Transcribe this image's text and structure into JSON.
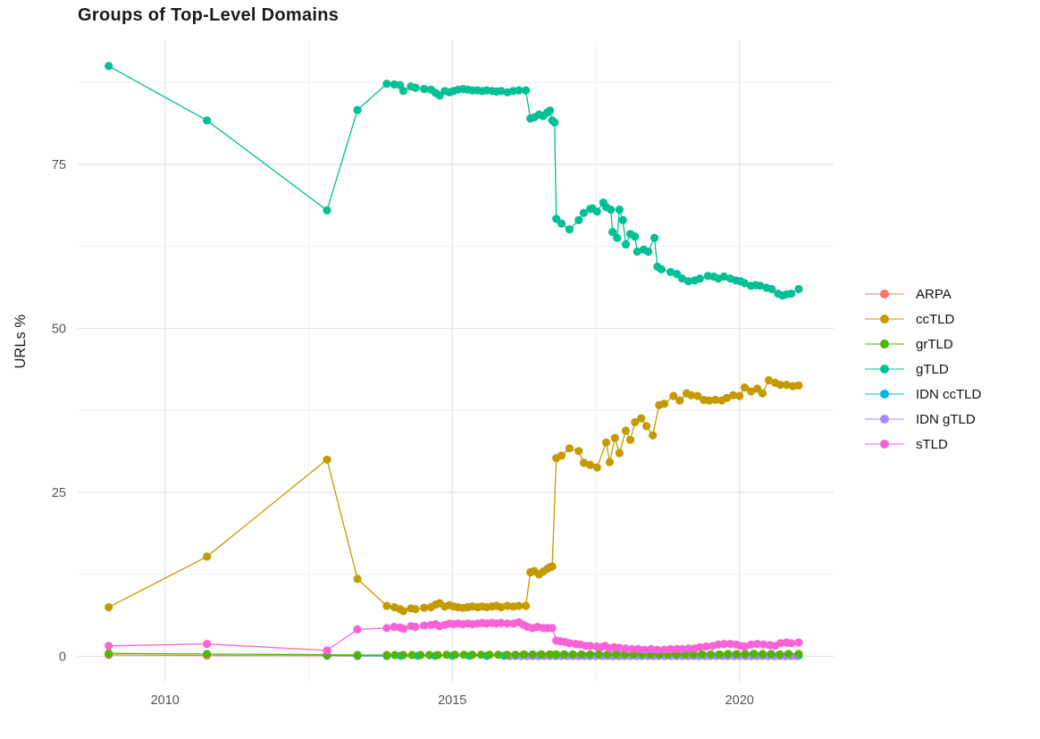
{
  "title": "Groups of Top-Level Domains",
  "axes": {
    "y_label": "URLs %",
    "y_tick_labels": [
      "0",
      "25",
      "50",
      "75"
    ],
    "x_tick_labels": [
      "2010",
      "2015",
      "2020"
    ]
  },
  "legend": {
    "items": [
      {
        "label": "ARPA",
        "color": "#F8766D"
      },
      {
        "label": "ccTLD",
        "color": "#C49A00"
      },
      {
        "label": "grTLD",
        "color": "#53B400"
      },
      {
        "label": "gTLD",
        "color": "#00C094"
      },
      {
        "label": "IDN ccTLD",
        "color": "#00B6EB"
      },
      {
        "label": "IDN gTLD",
        "color": "#A58AFF"
      },
      {
        "label": "sTLD",
        "color": "#FB61D7"
      }
    ]
  },
  "chart_data": {
    "type": "line",
    "title": "Groups of Top-Level Domains",
    "xlabel": "",
    "ylabel": "URLs %",
    "xlim": [
      2008.5,
      2021.65
    ],
    "ylim": [
      -1.5,
      94
    ],
    "x_ticks": [
      2010,
      2015,
      2020
    ],
    "x_minor": [
      2012.5,
      2017.5
    ],
    "y_ticks": [
      0,
      25,
      50,
      75
    ],
    "y_minor": [
      12.5,
      37.5,
      62.5,
      87.5
    ],
    "grid": true,
    "legend_position": "right",
    "grid_major_color": "#E4E4E4",
    "grid_minor_color": "#EFEFEF",
    "series": [
      {
        "name": "ARPA",
        "color": "#F8766D",
        "x": [
          2009.02,
          2010.73,
          2012.82,
          2013.35,
          2013.86
        ],
        "y": [
          0.2,
          0.12,
          0.08,
          0.06,
          0.05
        ]
      },
      {
        "name": "ccTLD",
        "color": "#C49A00",
        "x": [
          2009.02,
          2010.73,
          2012.82,
          2013.35,
          2013.86,
          2013.99,
          2014.09,
          2014.15,
          2014.28,
          2014.36,
          2014.51,
          2014.63,
          2014.71,
          2014.78,
          2014.87,
          2014.95,
          2015.02,
          2015.1,
          2015.19,
          2015.27,
          2015.35,
          2015.44,
          2015.52,
          2015.6,
          2015.69,
          2015.77,
          2015.85,
          2015.96,
          2016.06,
          2016.16,
          2016.28,
          2016.36,
          2016.43,
          2016.51,
          2016.58,
          2016.65,
          2016.7,
          2016.74,
          2016.81,
          2016.9,
          2017.04,
          2017.2,
          2017.29,
          2017.4,
          2017.52,
          2017.68,
          2017.74,
          2017.83,
          2017.91,
          2018.02,
          2018.1,
          2018.18,
          2018.29,
          2018.38,
          2018.49,
          2018.6,
          2018.69,
          2018.85,
          2018.96,
          2019.08,
          2019.16,
          2019.27,
          2019.38,
          2019.47,
          2019.58,
          2019.69,
          2019.78,
          2019.89,
          2020.0,
          2020.09,
          2020.2,
          2020.31,
          2020.4,
          2020.51,
          2020.62,
          2020.71,
          2020.82,
          2020.93,
          2021.03
        ],
        "y": [
          7.5,
          15.2,
          30,
          11.8,
          7.7,
          7.5,
          7.2,
          6.9,
          7.3,
          7.2,
          7.4,
          7.5,
          7.9,
          8.1,
          7.6,
          7.8,
          7.6,
          7.5,
          7.4,
          7.5,
          7.6,
          7.5,
          7.6,
          7.5,
          7.6,
          7.7,
          7.5,
          7.7,
          7.6,
          7.7,
          7.7,
          12.8,
          13,
          12.5,
          12.9,
          13.3,
          13.6,
          13.7,
          30.2,
          30.6,
          31.7,
          31.3,
          29.5,
          29.2,
          28.8,
          32.6,
          29.6,
          33.3,
          31,
          34.4,
          33,
          35.7,
          36.3,
          35.1,
          33.7,
          38.3,
          38.5,
          39.7,
          39,
          40.1,
          39.8,
          39.7,
          39.1,
          39,
          39.1,
          39,
          39.4,
          39.8,
          39.7,
          41,
          40.4,
          40.8,
          40.1,
          42.1,
          41.7,
          41.4,
          41.4,
          41.2,
          41.3
        ]
      },
      {
        "name": "grTLD",
        "color": "#53B400",
        "x": [
          2009.02,
          2010.73,
          2012.82,
          2013.35,
          2013.86,
          2014.0,
          2014.15,
          2014.3,
          2014.45,
          2014.6,
          2014.75,
          2014.9,
          2015.05,
          2015.2,
          2015.35,
          2015.5,
          2015.65,
          2015.8,
          2015.95,
          2016.1,
          2016.25,
          2016.4,
          2016.55,
          2016.7,
          2016.81,
          2016.95,
          2017.1,
          2017.25,
          2017.4,
          2017.55,
          2017.7,
          2017.85,
          2018.0,
          2018.15,
          2018.3,
          2018.45,
          2018.6,
          2018.75,
          2018.9,
          2019.05,
          2019.2,
          2019.35,
          2019.5,
          2019.65,
          2019.8,
          2019.95,
          2020.1,
          2020.25,
          2020.4,
          2020.55,
          2020.7,
          2020.85,
          2021.03
        ],
        "y": [
          0.45,
          0.35,
          0.25,
          0.2,
          0.2,
          0.2,
          0.2,
          0.2,
          0.2,
          0.2,
          0.2,
          0.25,
          0.25,
          0.25,
          0.25,
          0.25,
          0.25,
          0.25,
          0.25,
          0.25,
          0.3,
          0.3,
          0.3,
          0.3,
          0.3,
          0.3,
          0.3,
          0.3,
          0.3,
          0.3,
          0.3,
          0.3,
          0.3,
          0.3,
          0.3,
          0.3,
          0.3,
          0.3,
          0.3,
          0.3,
          0.3,
          0.3,
          0.3,
          0.3,
          0.35,
          0.35,
          0.35,
          0.4,
          0.35,
          0.35,
          0.3,
          0.35,
          0.35
        ]
      },
      {
        "name": "gTLD",
        "color": "#00C094",
        "x": [
          2009.02,
          2010.73,
          2012.82,
          2013.35,
          2013.86,
          2013.99,
          2014.09,
          2014.15,
          2014.28,
          2014.36,
          2014.51,
          2014.63,
          2014.71,
          2014.78,
          2014.87,
          2014.95,
          2015.02,
          2015.1,
          2015.19,
          2015.27,
          2015.35,
          2015.44,
          2015.52,
          2015.6,
          2015.69,
          2015.77,
          2015.85,
          2015.96,
          2016.06,
          2016.16,
          2016.28,
          2016.36,
          2016.43,
          2016.51,
          2016.58,
          2016.65,
          2016.7,
          2016.74,
          2016.78,
          2016.81,
          2016.9,
          2017.04,
          2017.2,
          2017.29,
          2017.4,
          2017.44,
          2017.52,
          2017.63,
          2017.68,
          2017.76,
          2017.79,
          2017.87,
          2017.91,
          2017.97,
          2018.02,
          2018.1,
          2018.18,
          2018.22,
          2018.33,
          2018.41,
          2018.52,
          2018.57,
          2018.64,
          2018.8,
          2018.91,
          2019.0,
          2019.11,
          2019.22,
          2019.31,
          2019.45,
          2019.55,
          2019.63,
          2019.73,
          2019.84,
          2019.94,
          2020.02,
          2020.09,
          2020.2,
          2020.28,
          2020.36,
          2020.47,
          2020.56,
          2020.67,
          2020.75,
          2020.82,
          2020.9,
          2021.03
        ],
        "y": [
          90,
          81.7,
          68,
          83.3,
          87.3,
          87.2,
          87.1,
          86.2,
          86.9,
          86.7,
          86.5,
          86.4,
          85.9,
          85.5,
          86.2,
          86,
          86.2,
          86.4,
          86.5,
          86.4,
          86.3,
          86.3,
          86.2,
          86.3,
          86.2,
          86.1,
          86.2,
          86,
          86.2,
          86.3,
          86.3,
          82,
          82.2,
          82.6,
          82.4,
          82.9,
          83.2,
          81.7,
          81.4,
          66.7,
          66,
          65.1,
          66.5,
          67.6,
          68.2,
          68.3,
          67.8,
          69.2,
          68.5,
          68.1,
          64.7,
          63.8,
          68.1,
          66.5,
          62.8,
          64.4,
          64,
          61.7,
          62,
          61.7,
          63.8,
          59.4,
          59,
          58.6,
          58.3,
          57.6,
          57.2,
          57.3,
          57.6,
          58,
          57.9,
          57.6,
          57.9,
          57.6,
          57.3,
          57.2,
          56.9,
          56.5,
          56.6,
          56.5,
          56.2,
          56,
          55.3,
          55,
          55.2,
          55.3,
          56
        ]
      },
      {
        "name": "IDN ccTLD",
        "color": "#00B6EB",
        "x": [
          2012.82,
          2013.35,
          2013.86,
          2014.1,
          2014.4,
          2014.7,
          2015.0,
          2015.3,
          2015.6,
          2015.9,
          2016.2,
          2016.5,
          2016.81,
          2017.1,
          2017.4,
          2017.7,
          2018.0,
          2018.3,
          2018.6,
          2018.9,
          2019.2,
          2019.5,
          2019.8,
          2020.1,
          2020.4,
          2020.7,
          2021.03
        ],
        "y": [
          0.15,
          0.1,
          0.08,
          0.08,
          0.08,
          0.08,
          0.08,
          0.08,
          0.08,
          0.08,
          0.08,
          0.08,
          0.08,
          0.08,
          0.08,
          0.08,
          0.08,
          0.08,
          0.08,
          0.08,
          0.08,
          0.08,
          0.08,
          0.08,
          0.08,
          0.08,
          0.08
        ]
      },
      {
        "name": "IDN gTLD",
        "color": "#A58AFF",
        "x": [
          2016.0,
          2016.1,
          2016.2,
          2016.3,
          2016.4,
          2016.5,
          2016.6,
          2016.7,
          2016.8,
          2016.9,
          2017.0,
          2017.1,
          2017.2,
          2017.3,
          2017.4,
          2017.5,
          2017.6,
          2017.7,
          2017.8,
          2017.9,
          2018.0,
          2018.1,
          2018.2,
          2018.3,
          2018.4,
          2018.5,
          2018.6,
          2018.7,
          2018.8,
          2018.9,
          2019.0,
          2019.1,
          2019.2,
          2019.3,
          2019.4,
          2019.5,
          2019.6,
          2019.7,
          2019.8,
          2019.9,
          2020.0,
          2020.1,
          2020.2,
          2020.3,
          2020.4,
          2020.5,
          2020.6,
          2020.7,
          2020.8,
          2020.9,
          2021.0
        ],
        "y": [
          0.05,
          0.05,
          0.05,
          0.05,
          0.05,
          0.05,
          0.05,
          0.05,
          0.05,
          0.05,
          0.05,
          0.05,
          0.05,
          0.05,
          0.05,
          0.05,
          0.05,
          0.05,
          0.05,
          0.05,
          0.05,
          0.05,
          0.05,
          0.05,
          0.05,
          0.05,
          0.05,
          0.05,
          0.05,
          0.05,
          0.05,
          0.05,
          0.05,
          0.05,
          0.05,
          0.05,
          0.05,
          0.05,
          0.05,
          0.05,
          0.05,
          0.05,
          0.05,
          0.05,
          0.05,
          0.05,
          0.05,
          0.05,
          0.05,
          0.05,
          0.05
        ]
      },
      {
        "name": "sTLD",
        "color": "#FB61D7",
        "x": [
          2009.02,
          2010.73,
          2012.82,
          2013.35,
          2013.86,
          2013.99,
          2014.09,
          2014.15,
          2014.28,
          2014.36,
          2014.51,
          2014.63,
          2014.71,
          2014.78,
          2014.87,
          2014.95,
          2015.02,
          2015.1,
          2015.19,
          2015.27,
          2015.35,
          2015.44,
          2015.52,
          2015.6,
          2015.69,
          2015.77,
          2015.85,
          2015.96,
          2016.07,
          2016.16,
          2016.24,
          2016.31,
          2016.4,
          2016.48,
          2016.58,
          2016.66,
          2016.74,
          2016.81,
          2016.88,
          2016.96,
          2017.04,
          2017.15,
          2017.23,
          2017.32,
          2017.4,
          2017.51,
          2017.59,
          2017.66,
          2017.74,
          2017.82,
          2017.91,
          2018.02,
          2018.13,
          2018.24,
          2018.35,
          2018.46,
          2018.57,
          2018.69,
          2018.8,
          2018.91,
          2019.0,
          2019.11,
          2019.22,
          2019.31,
          2019.42,
          2019.53,
          2019.63,
          2019.73,
          2019.84,
          2019.94,
          2020.02,
          2020.09,
          2020.2,
          2020.31,
          2020.42,
          2020.53,
          2020.62,
          2020.71,
          2020.82,
          2020.9,
          2021.03
        ],
        "y": [
          1.6,
          1.9,
          0.9,
          4.1,
          4.3,
          4.5,
          4.4,
          4.2,
          4.6,
          4.5,
          4.7,
          4.8,
          4.9,
          4.6,
          4.8,
          5,
          4.9,
          5,
          4.9,
          5,
          4.9,
          5,
          5.1,
          5,
          5.1,
          5,
          5.1,
          5,
          5,
          5.2,
          4.8,
          4.5,
          4.3,
          4.5,
          4.3,
          4.3,
          4.3,
          2.4,
          2.3,
          2.2,
          2,
          1.9,
          1.8,
          1.6,
          1.6,
          1.5,
          1.4,
          1.6,
          1.2,
          1.4,
          1.3,
          1.2,
          1.1,
          1.1,
          1,
          1.1,
          1,
          1,
          1.1,
          1.1,
          1.1,
          1.2,
          1.2,
          1.4,
          1.5,
          1.6,
          1.8,
          1.9,
          1.9,
          1.8,
          1.6,
          1.5,
          1.8,
          1.9,
          1.8,
          1.7,
          1.6,
          2,
          2.1,
          2,
          2.1
        ]
      }
    ],
    "draw_order": [
      0,
      4,
      5,
      2,
      6,
      1,
      3
    ]
  }
}
